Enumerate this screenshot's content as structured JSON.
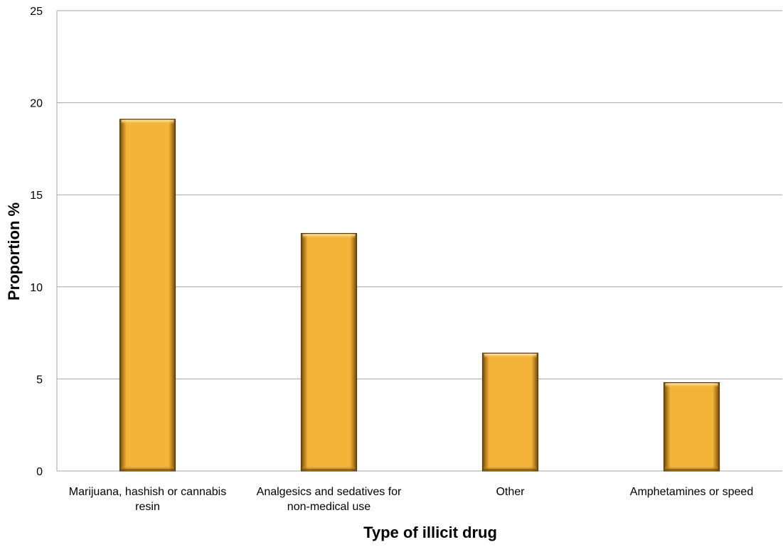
{
  "chart_data": {
    "type": "bar",
    "title": "",
    "xlabel": "Type of illicit drug",
    "ylabel": "Proportion  %",
    "categories": [
      [
        "Marijuana, hashish or cannabis",
        "resin"
      ],
      [
        "Analgesics and sedatives for",
        "non-medical use"
      ],
      [
        "Other"
      ],
      [
        "Amphetamines or speed"
      ]
    ],
    "values": [
      19.1,
      12.9,
      6.4,
      4.8
    ],
    "ylim": [
      0,
      25
    ],
    "yticks": [
      0,
      5,
      10,
      15,
      20,
      25
    ],
    "grid": true,
    "legend": "none",
    "colors": {
      "bar_fill": "#f4b43a",
      "bar_edge": "#5a3c0a",
      "bar_highlight": "#ffd97a",
      "bar_shadow": "#9b6a12",
      "gridline": "#a6a6a6",
      "axis": "#a6a6a6"
    }
  }
}
